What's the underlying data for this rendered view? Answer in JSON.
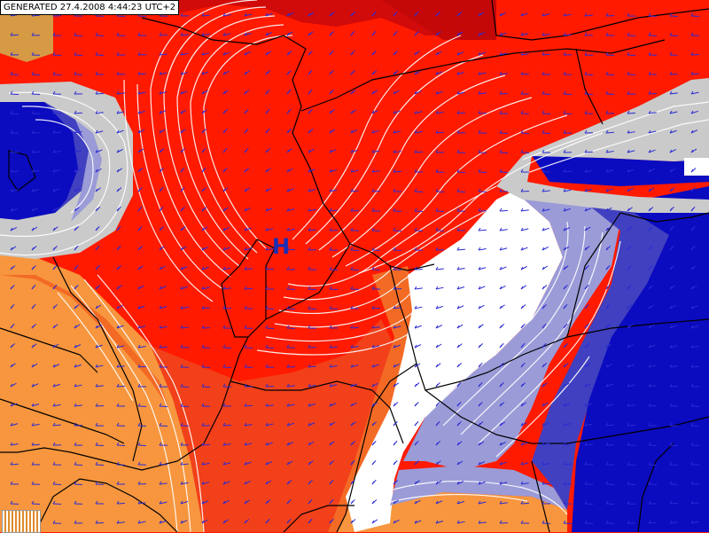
{
  "header": {
    "generated_label": "GENERATED 27.4.2008 4:44:23 UTC+2"
  },
  "map": {
    "pressure_centre": {
      "label": "H"
    },
    "palette": {
      "deep_red": "#d10a0a",
      "red": "#ff1a00",
      "red_orange": "#f2401a",
      "orange": "#f36a25",
      "light_orange": "#f7963e",
      "tan": "#d69a45",
      "white": "#ffffff",
      "gray": "#cacaca",
      "light_blue": "#9b9bd8",
      "mid_blue": "#4040c0",
      "deep_blue": "#0b0bc0",
      "contour": "#ffffff",
      "border": "#000000",
      "arrow": "#2b2bd2"
    },
    "legend_icon": "legend-icon"
  }
}
